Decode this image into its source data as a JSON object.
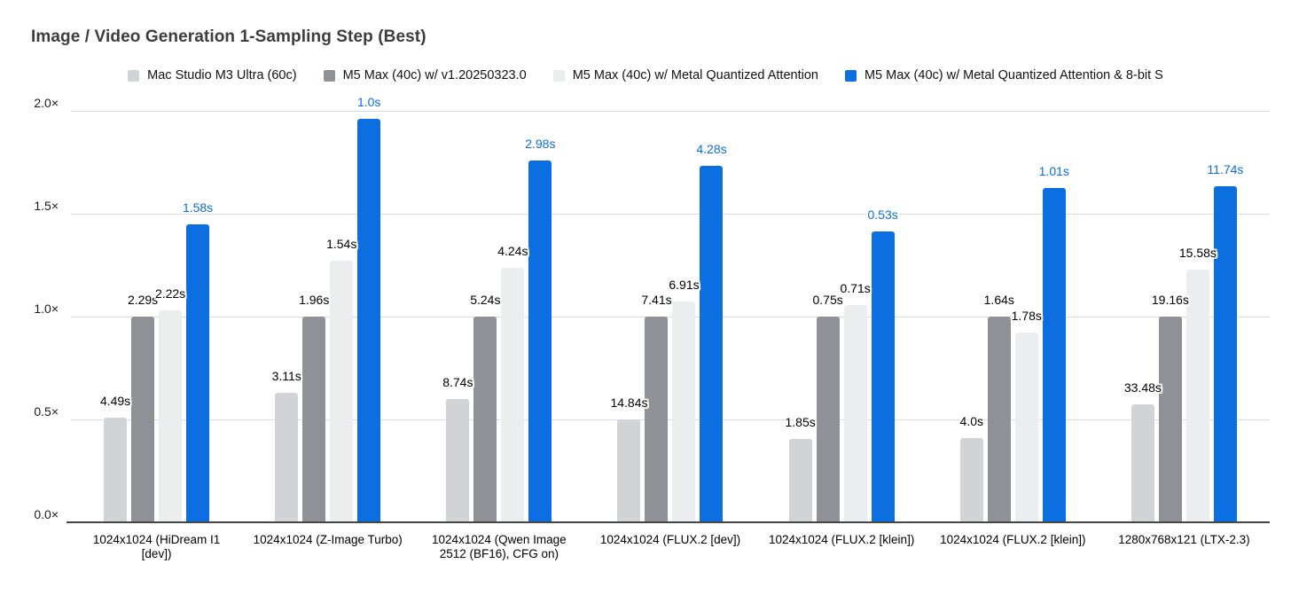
{
  "page": {
    "background": "#ffffff"
  },
  "chart_data": {
    "type": "bar",
    "title": "Image / Video Generation 1-Sampling Step (Best)",
    "y_axis": {
      "unit": "×",
      "min": 0.0,
      "max": 2.0,
      "tick_step": 0.5,
      "tick_labels": [
        "0.0×",
        "0.5×",
        "1.0×",
        "1.5×",
        "2.0×"
      ],
      "grid": true
    },
    "legend_position": "top",
    "categories": [
      "1024x1024 (HiDream I1 [dev])",
      "1024x1024 (Z-Image Turbo)",
      "1024x1024 (Qwen Image 2512 (BF16), CFG on)",
      "1024x1024 (FLUX.2 [dev])",
      "1024x1024 (FLUX.2 [klein])",
      "1024x1024 (FLUX.2 [klein])",
      "1280x768x121 (LTX-2.3)"
    ],
    "series": [
      {
        "name": "Mac Studio M3 Ultra (60c)",
        "color": "#d1d3d7",
        "label_color": "#000000",
        "time_labels": [
          "4.49s",
          "3.11s",
          "8.74s",
          "14.84s",
          "1.85s",
          "4.0s",
          "33.48s"
        ],
        "relative_values": [
          0.51,
          0.63,
          0.6,
          0.499,
          0.405,
          0.41,
          0.572
        ]
      },
      {
        "name": "M5 Max (40c) w/ v1.20250323.0",
        "color": "#8e9196",
        "label_color": "#000000",
        "time_labels": [
          "2.29s",
          "1.96s",
          "5.24s",
          "7.41s",
          "0.75s",
          "1.64s",
          "19.16s"
        ],
        "relative_values": [
          1.0,
          1.0,
          1.0,
          1.0,
          1.0,
          1.0,
          1.0
        ]
      },
      {
        "name": "M5 Max (40c) w/ Metal Quantized Attention",
        "color": "#ecedef",
        "label_color": "#000000",
        "time_labels": [
          "2.22s",
          "1.54s",
          "4.24s",
          "6.91s",
          "0.71s",
          "1.78s",
          "15.58s"
        ],
        "relative_values": [
          1.032,
          1.273,
          1.236,
          1.072,
          1.056,
          0.921,
          1.23
        ]
      },
      {
        "name": "M5 Max (40c) w/ Metal Quantized Attention & 8-bit S",
        "color": "#0b6fe2",
        "label_color": "#0b6fe2",
        "time_labels": [
          "1.58s",
          "1.0s",
          "2.98s",
          "4.28s",
          "0.53s",
          "1.01s",
          "11.74s"
        ],
        "relative_values": [
          1.449,
          1.96,
          1.758,
          1.731,
          1.415,
          1.624,
          1.632
        ]
      }
    ]
  }
}
